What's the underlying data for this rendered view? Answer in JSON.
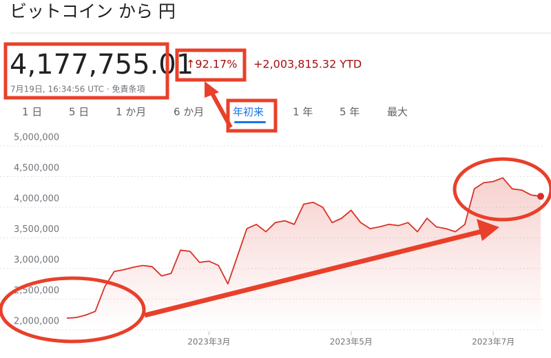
{
  "header": {
    "title": "ビットコイン から 円"
  },
  "quote": {
    "price": "4,177,755.01",
    "timestamp": "7月19日, 16:34:56 UTC · 免責条項",
    "change_percent": "↑92.17%",
    "change_value": "+2,003,815.32 YTD"
  },
  "tabs": [
    "1 日",
    "5 日",
    "1 か月",
    "6 か月",
    "年初来",
    "1 年",
    "5 年",
    "最大"
  ],
  "chart_data": {
    "type": "area-line",
    "color": "#d93025",
    "categories": [
      null,
      null,
      null,
      null,
      null,
      null,
      null,
      null,
      null,
      null,
      null,
      null,
      null,
      null,
      null,
      "2023年3月",
      null,
      null,
      null,
      null,
      null,
      null,
      null,
      null,
      null,
      null,
      null,
      null,
      null,
      null,
      "2023年5月",
      null,
      null,
      null,
      null,
      null,
      null,
      null,
      null,
      null,
      null,
      null,
      null,
      null,
      null,
      "2023年7月",
      null,
      null,
      null,
      null,
      null
    ],
    "values": [
      2190000,
      2200000,
      2240000,
      2300000,
      2700000,
      2950000,
      2980000,
      3020000,
      3050000,
      3030000,
      2880000,
      2920000,
      3300000,
      3280000,
      3100000,
      3120000,
      3050000,
      2750000,
      3200000,
      3650000,
      3720000,
      3600000,
      3750000,
      3780000,
      3720000,
      4050000,
      4080000,
      4000000,
      3750000,
      3820000,
      3950000,
      3750000,
      3650000,
      3680000,
      3720000,
      3700000,
      3750000,
      3600000,
      3820000,
      3680000,
      3650000,
      3600000,
      3720000,
      4300000,
      4400000,
      4420000,
      4480000,
      4300000,
      4280000,
      4200000,
      4177755.01
    ],
    "ylim": [
      2000000,
      5000000
    ],
    "yticks": [
      {
        "value": 2000000,
        "label": "2,000,000"
      },
      {
        "value": 2500000,
        "label": "2,500,000"
      },
      {
        "value": 3000000,
        "label": "3,000,000"
      },
      {
        "value": 3500000,
        "label": "3,500,000"
      },
      {
        "value": 4000000,
        "label": "4,000,000"
      },
      {
        "value": 4500000,
        "label": "4,500,000"
      },
      {
        "value": 5000000,
        "label": "5,000,000"
      }
    ],
    "grid": true
  }
}
